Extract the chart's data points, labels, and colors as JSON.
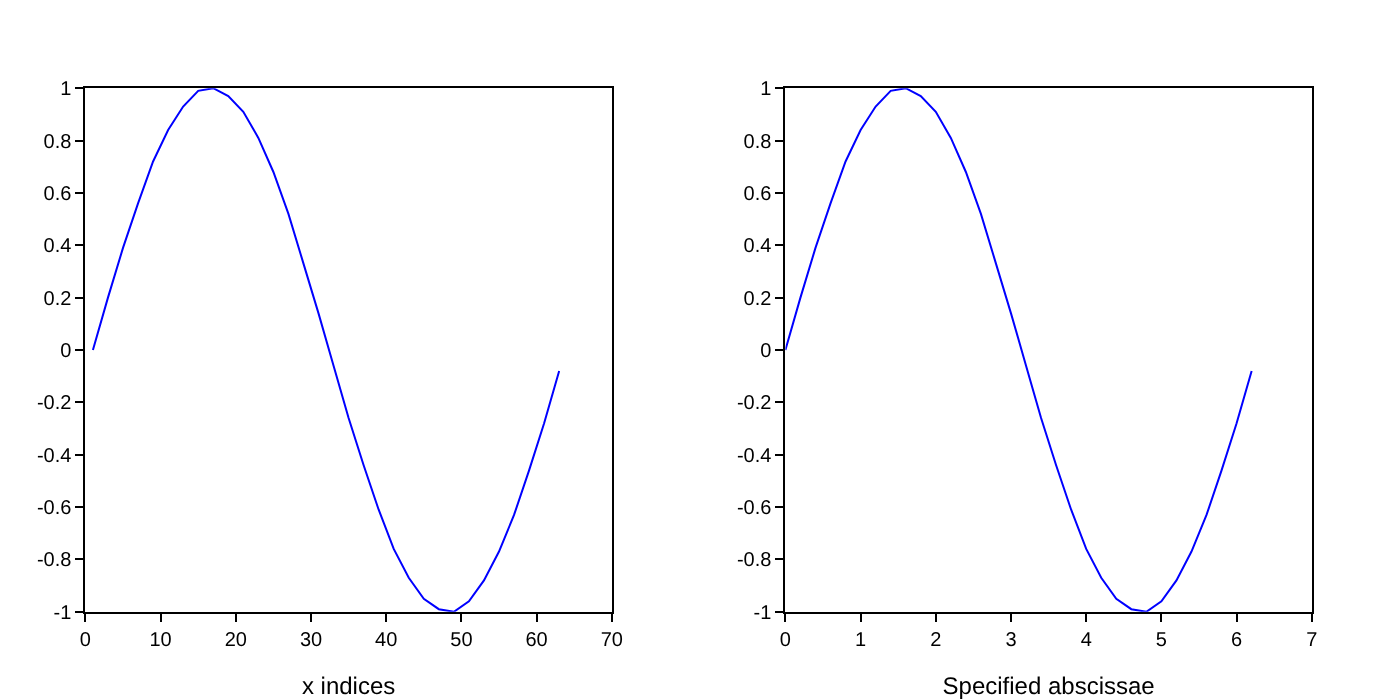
{
  "chart_data": [
    {
      "type": "line",
      "xlabel": "x indices",
      "xlim": [
        0,
        70
      ],
      "xticks": [
        0,
        10,
        20,
        30,
        40,
        50,
        60,
        70
      ],
      "ylim": [
        -1,
        1
      ],
      "yticks": [
        -1,
        -0.8,
        -0.6,
        -0.4,
        -0.2,
        0,
        0.2,
        0.4,
        0.6,
        0.8,
        1
      ],
      "x": [
        1,
        3,
        5,
        7,
        9,
        11,
        13,
        15,
        17,
        19,
        21,
        23,
        25,
        27,
        29,
        31,
        33,
        35,
        37,
        39,
        41,
        43,
        45,
        47,
        49,
        51,
        53,
        55,
        57,
        59,
        61,
        63
      ],
      "series": [
        {
          "color": "#0000ff",
          "values": [
            0,
            0.2,
            0.39,
            0.56,
            0.72,
            0.84,
            0.93,
            0.99,
            1.0,
            0.97,
            0.91,
            0.81,
            0.68,
            0.52,
            0.33,
            0.14,
            -0.06,
            -0.26,
            -0.44,
            -0.61,
            -0.76,
            -0.87,
            -0.95,
            -0.99,
            -1.0,
            -0.96,
            -0.88,
            -0.77,
            -0.63,
            -0.46,
            -0.28,
            -0.08
          ]
        }
      ]
    },
    {
      "type": "line",
      "xlabel": "Specified abscissae",
      "xlim": [
        0,
        7
      ],
      "xticks": [
        0,
        1,
        2,
        3,
        4,
        5,
        6,
        7
      ],
      "ylim": [
        -1,
        1
      ],
      "yticks": [
        -1,
        -0.8,
        -0.6,
        -0.4,
        -0.2,
        0,
        0.2,
        0.4,
        0.6,
        0.8,
        1
      ],
      "x": [
        0,
        0.2,
        0.4,
        0.6,
        0.8,
        1.0,
        1.2,
        1.4,
        1.6,
        1.8,
        2.0,
        2.2,
        2.4,
        2.6,
        2.8,
        3.0,
        3.2,
        3.4,
        3.6,
        3.8,
        4.0,
        4.2,
        4.4,
        4.6,
        4.8,
        5.0,
        5.2,
        5.4,
        5.6,
        5.8,
        6.0,
        6.2
      ],
      "series": [
        {
          "color": "#0000ff",
          "values": [
            0,
            0.2,
            0.39,
            0.56,
            0.72,
            0.84,
            0.93,
            0.99,
            1.0,
            0.97,
            0.91,
            0.81,
            0.68,
            0.52,
            0.33,
            0.14,
            -0.06,
            -0.26,
            -0.44,
            -0.61,
            -0.76,
            -0.87,
            -0.95,
            -0.99,
            -1.0,
            -0.96,
            -0.88,
            -0.77,
            -0.63,
            -0.46,
            -0.28,
            -0.08
          ]
        }
      ]
    }
  ]
}
